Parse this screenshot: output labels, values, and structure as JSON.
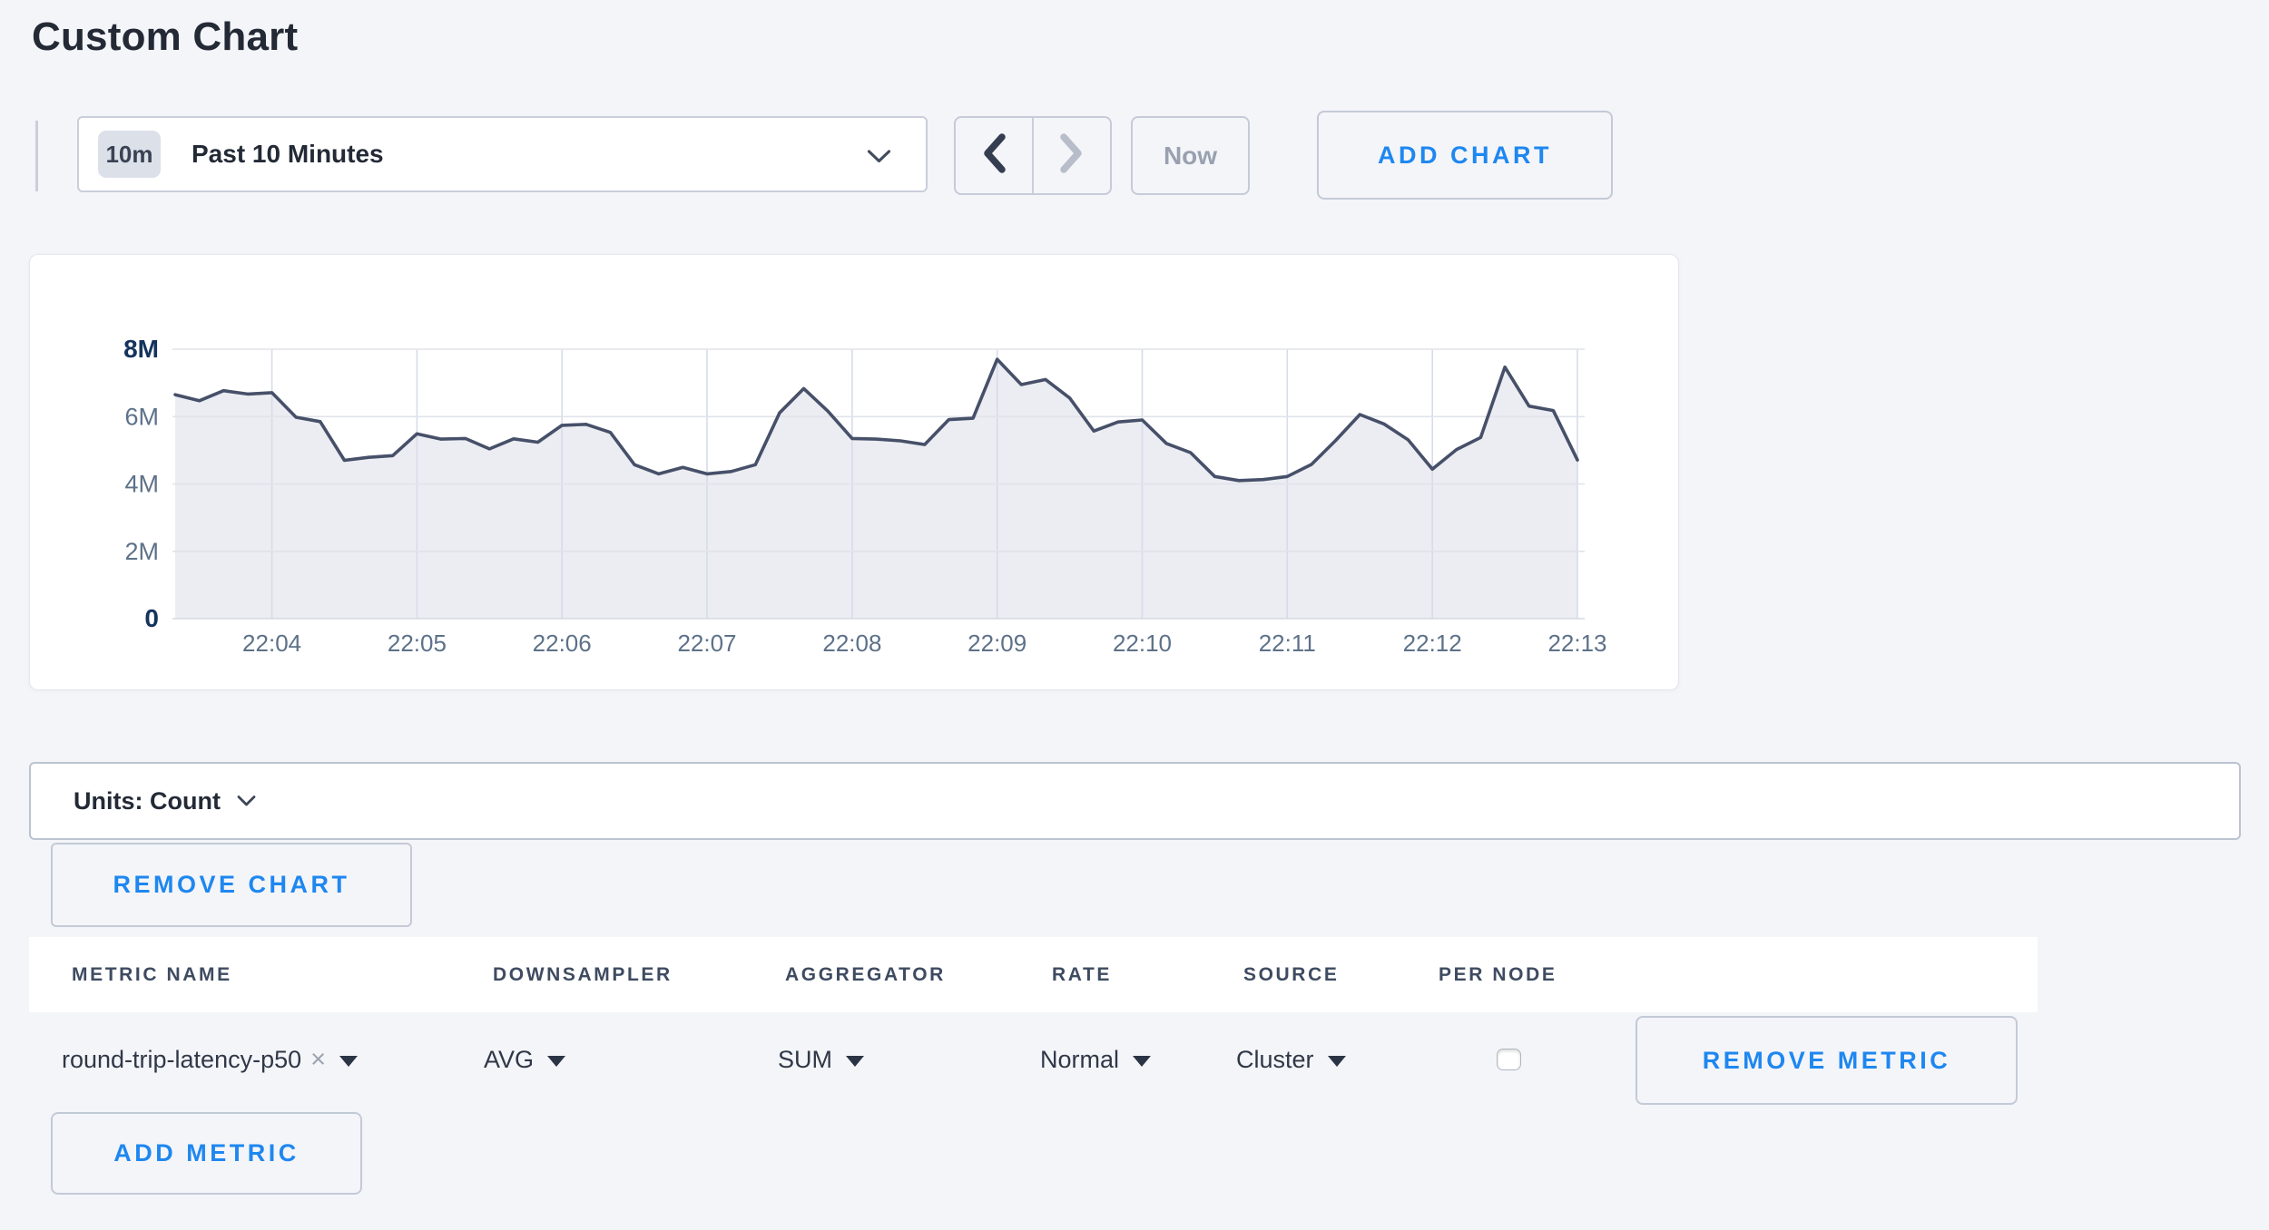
{
  "page": {
    "title": "Custom Chart",
    "background_color": "#f4f5f9",
    "accent_blue": "#1e87f0"
  },
  "toolbar": {
    "time_scale_badge": "10m",
    "time_scale_label": "Past 10 Minutes",
    "now_label": "Now",
    "add_chart_label": "ADD CHART",
    "prev_enabled": true,
    "next_enabled": false
  },
  "chart_data": {
    "type": "area",
    "title": "",
    "xlabel": "",
    "ylabel": "",
    "unit": "Count",
    "start_time": "22:03:20",
    "point_interval_seconds": 10,
    "x_ticks": [
      "22:04",
      "22:05",
      "22:06",
      "22:07",
      "22:08",
      "22:09",
      "22:10",
      "22:11",
      "22:12",
      "22:13"
    ],
    "x_tick_start_index": 4,
    "x_tick_step": 6,
    "y_ticks": [
      {
        "label": "0",
        "value": 0,
        "strong": true
      },
      {
        "label": "2M",
        "value": 2,
        "strong": false
      },
      {
        "label": "4M",
        "value": 4,
        "strong": false
      },
      {
        "label": "6M",
        "value": 6,
        "strong": false
      },
      {
        "label": "8M",
        "value": 8,
        "strong": true
      }
    ],
    "ylim_millions": [
      0,
      8
    ],
    "grid": true,
    "legend_position": "none",
    "series": [
      {
        "name": "round-trip-latency-p50",
        "values_millions": [
          6.65,
          6.47,
          6.77,
          6.67,
          6.71,
          5.98,
          5.85,
          4.7,
          4.79,
          4.84,
          5.49,
          5.33,
          5.35,
          5.04,
          5.34,
          5.24,
          5.74,
          5.77,
          5.53,
          4.57,
          4.3,
          4.49,
          4.3,
          4.37,
          4.57,
          6.11,
          6.83,
          6.16,
          5.35,
          5.33,
          5.28,
          5.17,
          5.91,
          5.95,
          7.7,
          6.95,
          7.1,
          6.55,
          5.57,
          5.84,
          5.9,
          5.2,
          4.93,
          4.22,
          4.1,
          4.13,
          4.22,
          4.58,
          5.29,
          6.06,
          5.78,
          5.31,
          4.44,
          5.02,
          5.38,
          7.47,
          6.31,
          6.18,
          4.71
        ]
      }
    ],
    "colors": {
      "line": "#475069",
      "fill": "#ebedf2",
      "grid_h": "#e0e3ea",
      "grid_v": "#d6dce9",
      "baseline": "#d4d9e1",
      "label_strong": "#14335d",
      "label_muted": "#5d7189"
    }
  },
  "units_bar": {
    "label": "Units: Count"
  },
  "chart_actions": {
    "remove_chart_label": "REMOVE CHART"
  },
  "metrics_table": {
    "columns": [
      "METRIC NAME",
      "DOWNSAMPLER",
      "AGGREGATOR",
      "RATE",
      "SOURCE",
      "PER NODE"
    ],
    "rows": [
      {
        "metric_name": "round-trip-latency-p50",
        "clear_icon": "×",
        "downsampler": "AVG",
        "aggregator": "SUM",
        "rate": "Normal",
        "source": "Cluster",
        "per_node_checked": false
      }
    ],
    "remove_metric_label": "REMOVE METRIC",
    "add_metric_label": "ADD METRIC"
  }
}
